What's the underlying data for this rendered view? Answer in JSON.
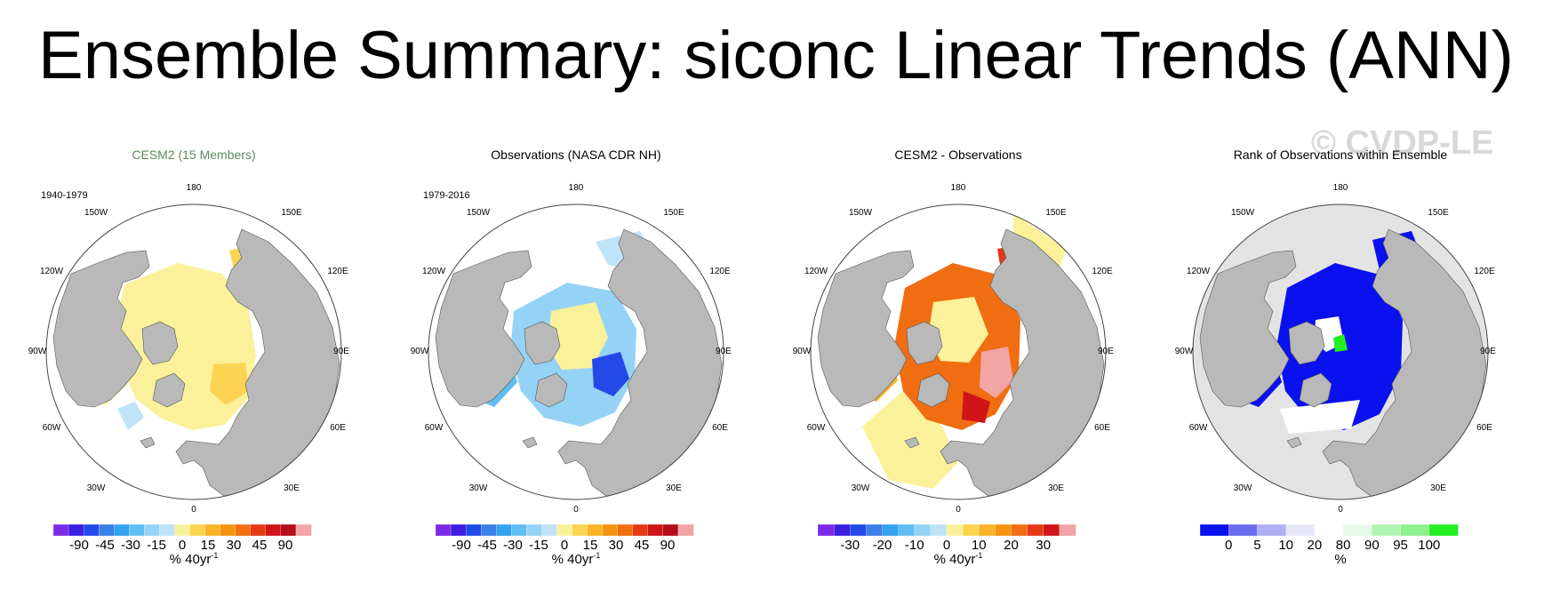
{
  "title": "Ensemble Summary: siconc Linear Trends (ANN)",
  "watermark": "© CVDP-LE",
  "lon_labels": {
    "180": "180",
    "150W": "150W",
    "150E": "150E",
    "120W": "120W",
    "120E": "120E",
    "90W": "90W",
    "90E": "90E",
    "60W": "60W",
    "60E": "60E",
    "30W": "30W",
    "30E": "30E",
    "0": "0"
  },
  "colors": {
    "land": "#b9b9b9",
    "ocean": "#ffffff",
    "rank_background": "#e3e3e3",
    "title_green": "#5b8a5b",
    "ramp_8": [
      "#7d2ae8",
      "#3b1ee0",
      "#2349e8",
      "#3c7fe8",
      "#33a2ef",
      "#62bdf2",
      "#94d3f6",
      "#bfe3f8",
      "#fbf19a",
      "#fbd350",
      "#f8b327",
      "#f59412",
      "#f06d12",
      "#e53815",
      "#cf1518",
      "#b30f1a",
      "#f2a5a5"
    ],
    "ramp_ano": [
      "#7d2ae8",
      "#3b1ee0",
      "#2349e8",
      "#3c7fe8",
      "#33a2ef",
      "#62bdf2",
      "#94d3f6",
      "#bfe3f8",
      "#fbf19a",
      "#fbd350",
      "#f8b327",
      "#f59412",
      "#f06d12",
      "#e53815",
      "#cf1518",
      "#f2a5a5"
    ],
    "ramp_rank": [
      "#0a10ee",
      "#6c6cf0",
      "#aeaef5",
      "#e6e6f8",
      "#ffffff",
      "#e6f8e6",
      "#b3f5b3",
      "#8df28d",
      "#23ee23"
    ]
  },
  "panels": [
    {
      "title": "CESM2 (15 Members)",
      "period": "1940-1979",
      "units": "% 40yr",
      "units_sup": "-1",
      "ticks": [
        "-90",
        "-45",
        "-30",
        "-15",
        "0",
        "15",
        "30",
        "45",
        "90"
      ]
    },
    {
      "title": "Observations (NASA CDR NH)",
      "period": "1979-2016",
      "units": "% 40yr",
      "units_sup": "-1",
      "ticks": [
        "-90",
        "-45",
        "-30",
        "-15",
        "0",
        "15",
        "30",
        "45",
        "90"
      ]
    },
    {
      "title": "CESM2 - Observations",
      "period": "",
      "units": "% 40yr",
      "units_sup": "-1",
      "ticks": [
        "-30",
        "-20",
        "-10",
        "0",
        "10",
        "20",
        "30"
      ]
    },
    {
      "title": "Rank of Observations within Ensemble",
      "period": "",
      "units": "%",
      "units_sup": "",
      "ticks": [
        "0",
        "5",
        "10",
        "20",
        "80",
        "90",
        "95",
        "100"
      ]
    }
  ]
}
